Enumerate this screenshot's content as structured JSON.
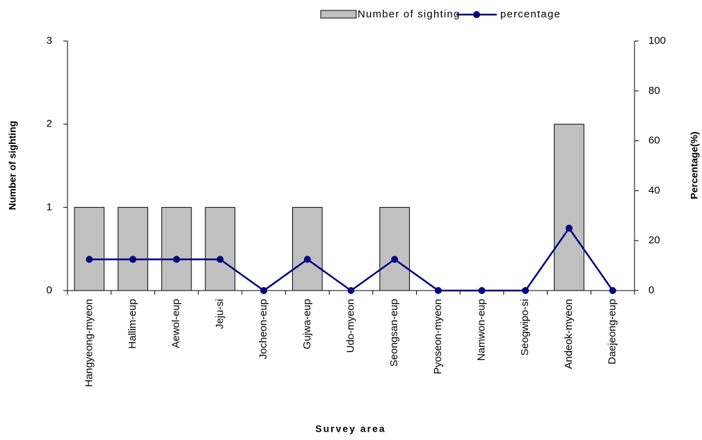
{
  "chart_data": {
    "type": "bar-line",
    "x_label": "Survey area",
    "y_label": "Number of sighting",
    "y2_label": "Percentage(%)",
    "categories": [
      "Hangyeong-myeon",
      "Hallim-eup",
      "Aewol-eup",
      "Jeju-si",
      "Jocheon-eup",
      "Gujwa-eup",
      "Udo-myeon",
      "Seongsan-eup",
      "Pyoseon-myeon",
      "Namwon-eup",
      "Seogwipo-si",
      "Andeok-myeon",
      "Daejeong-eup"
    ],
    "series": [
      {
        "name": "Number of sighting",
        "color": "#c0c0c0",
        "values": [
          1,
          1,
          1,
          1,
          0,
          1,
          0,
          1,
          0,
          0,
          0,
          2,
          0
        ]
      },
      {
        "name": "percentage",
        "color": "#000080",
        "axis": "y2",
        "values": [
          12.5,
          12.5,
          12.5,
          12.5,
          0,
          12.5,
          0,
          12.5,
          0,
          0,
          0,
          25,
          0
        ]
      }
    ],
    "ylim": [
      0,
      3
    ],
    "yticks": [
      0,
      1,
      2,
      3
    ],
    "y2lim": [
      0,
      100
    ],
    "y2ticks": [
      0,
      20,
      40,
      60,
      80,
      100
    ],
    "legend": "top-right"
  }
}
